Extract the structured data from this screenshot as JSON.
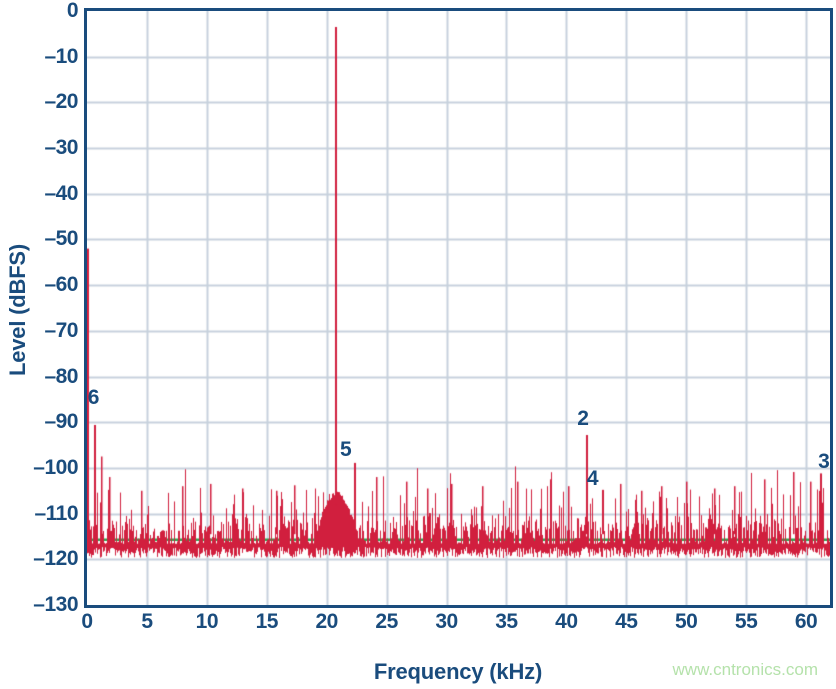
{
  "watermark": {
    "text": "www.cntronics.com",
    "color": "#b5e2ab"
  },
  "chart_data": {
    "type": "line",
    "title": "",
    "xlabel": "Frequency (kHz)",
    "ylabel": "Level (dBFS)",
    "xlim": [
      0,
      62
    ],
    "ylim": [
      -130,
      0
    ],
    "x_ticks": [
      0,
      5,
      10,
      15,
      20,
      25,
      30,
      35,
      40,
      45,
      50,
      55,
      60
    ],
    "y_ticks": [
      0,
      -10,
      -20,
      -30,
      -40,
      -50,
      -60,
      -70,
      -80,
      -90,
      -100,
      -110,
      -120,
      -130
    ],
    "grid": true,
    "legend": "none",
    "colors": {
      "axis": "#1a4c7d",
      "grid": "#c7d1dd",
      "spectrum": "#d11f3e",
      "median_line": "#2fa34e"
    },
    "series": [
      {
        "name": "FFT spectrum",
        "type": "spectrum",
        "color": "#d11f3e"
      },
      {
        "name": "median noise floor",
        "type": "hline",
        "level_dbfs": -115.7,
        "color": "#2fa34e"
      }
    ],
    "signal": {
      "fundamental": {
        "freq_khz": 20.8,
        "level_dbfs": -3.5
      },
      "dc_spike": {
        "freq_khz": 0.08,
        "level_dbfs": -52
      },
      "leakage_skirt": {
        "center_khz": 20.8,
        "peak_level_dbfs": -105.6,
        "half_width_khz": 1.7
      },
      "noise_floor": {
        "dense_top_dbfs": -112.5,
        "bottom_dbfs": -119.5,
        "spike_ceiling_dbfs": -97
      }
    },
    "harmonic_markers": [
      {
        "label": "2",
        "freq_khz": 41.6,
        "level_dbfs": -92.8,
        "label_pos": {
          "freq_khz": 41.4,
          "level_dbfs": -89.3
        }
      },
      {
        "label": "3",
        "freq_khz": 61.2,
        "level_dbfs": -101.2,
        "label_pos": {
          "freq_khz": 61.5,
          "level_dbfs": -98.8
        }
      },
      {
        "label": "4",
        "freq_khz": 43.0,
        "level_dbfs": -104.8,
        "label_pos": {
          "freq_khz": 42.2,
          "level_dbfs": -102.5
        }
      },
      {
        "label": "5",
        "freq_khz": 22.3,
        "level_dbfs": -98.9,
        "label_pos": {
          "freq_khz": 21.6,
          "level_dbfs": -96.0
        }
      },
      {
        "label": "6",
        "freq_khz": 0.55,
        "level_dbfs": -90.6,
        "label_pos": {
          "freq_khz": 0.55,
          "level_dbfs": -84.6
        }
      }
    ],
    "unlabeled_spikes": [
      {
        "freq_khz": 1.15,
        "level_dbfs": -97.5
      },
      {
        "freq_khz": 1.8,
        "level_dbfs": -102
      },
      {
        "freq_khz": 4.5,
        "level_dbfs": -105
      },
      {
        "freq_khz": 7.9,
        "level_dbfs": -104
      },
      {
        "freq_khz": 10.3,
        "level_dbfs": -103.5
      },
      {
        "freq_khz": 12.9,
        "level_dbfs": -104.5
      },
      {
        "freq_khz": 15.8,
        "level_dbfs": -105
      },
      {
        "freq_khz": 17.3,
        "level_dbfs": -103.8
      },
      {
        "freq_khz": 24.1,
        "level_dbfs": -102
      },
      {
        "freq_khz": 26.6,
        "level_dbfs": -103
      },
      {
        "freq_khz": 28.4,
        "level_dbfs": -104.5
      },
      {
        "freq_khz": 30.4,
        "level_dbfs": -103.5
      },
      {
        "freq_khz": 33.0,
        "level_dbfs": -104
      },
      {
        "freq_khz": 35.9,
        "level_dbfs": -103
      },
      {
        "freq_khz": 38.6,
        "level_dbfs": -102.5
      },
      {
        "freq_khz": 40.1,
        "level_dbfs": -104
      },
      {
        "freq_khz": 44.5,
        "level_dbfs": -103.5
      },
      {
        "freq_khz": 46.2,
        "level_dbfs": -105
      },
      {
        "freq_khz": 47.9,
        "level_dbfs": -104
      },
      {
        "freq_khz": 50.0,
        "level_dbfs": -103
      },
      {
        "freq_khz": 52.3,
        "level_dbfs": -104.5
      },
      {
        "freq_khz": 54.0,
        "level_dbfs": -104
      },
      {
        "freq_khz": 56.5,
        "level_dbfs": -102.5
      },
      {
        "freq_khz": 58.9,
        "level_dbfs": -100.9
      },
      {
        "freq_khz": 60.3,
        "level_dbfs": -103
      }
    ],
    "noise_seed": 20211
  }
}
